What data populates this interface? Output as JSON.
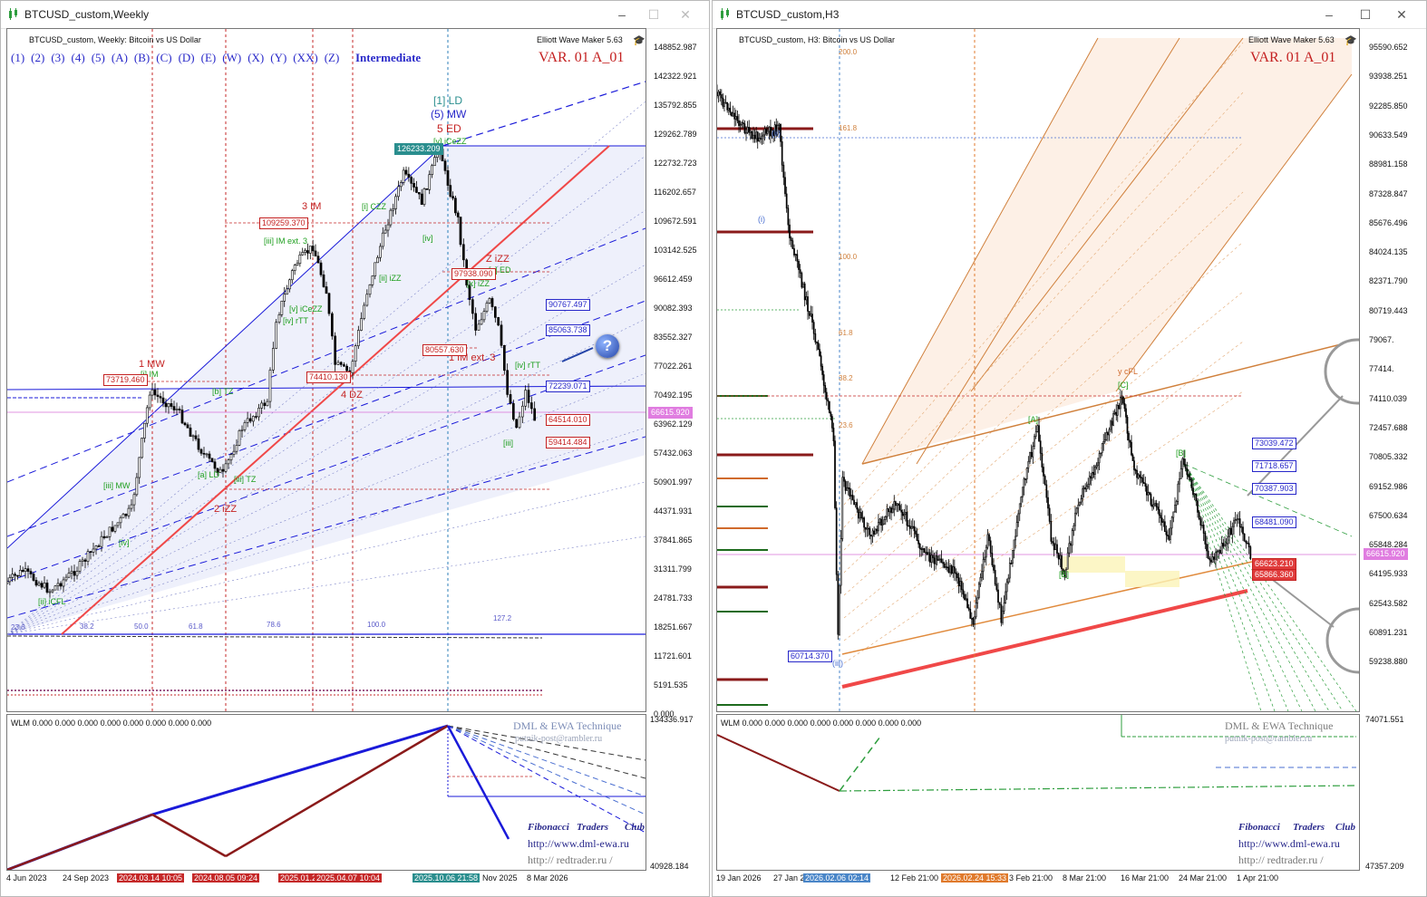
{
  "left": {
    "title": "BTCUSD_custom,Weekly",
    "header": "BTCUSD_custom, Weekly:  Bitcoin vs US Dollar",
    "ewm": "Elliott Wave Maker 5.63",
    "var": "VAR. 01 A_01",
    "waves": [
      "(1)",
      "(2)",
      "(3)",
      "(4)",
      "(5)",
      "(A)",
      "(B)",
      "(C)",
      "(D)",
      "(E)",
      "(W)",
      "(X)",
      "(Y)",
      "(XX)",
      "(Z)"
    ],
    "degree": "Intermediate",
    "price_scale": [
      "148852.987",
      "142322.921",
      "135792.855",
      "129262.789",
      "122732.723",
      "116202.657",
      "109672.591",
      "103142.525",
      "96612.459",
      "90082.393",
      "83552.327",
      "77022.261",
      "70492.195",
      "63962.129",
      "57432.063",
      "50901.997",
      "44371.931",
      "37841.865",
      "31311.799",
      "24781.733",
      "18251.667",
      "11721.601",
      "5191.535",
      "0.000"
    ],
    "current_price": "66615.920",
    "level_tags": [
      "90767.497",
      "85063.738",
      "72239.071",
      "64514.010",
      "59414.484"
    ],
    "price_labels": [
      "126233.209",
      "109259.370",
      "97938.090",
      "80557.630",
      "74410.130",
      "73719.460"
    ],
    "wave_labels": {
      "w1": "[1] LD",
      "w2": "(5) MW",
      "w3": "5 ED",
      "w4": "3 IM",
      "w5": "1 MW",
      "w6": "2 iZZ",
      "w7": "4 DZ",
      "w8": "Z iZZ",
      "w9": "1 IM ext. 3",
      "s1": "[i] IM",
      "s2": "[iii] IM ext. 3",
      "s3": "[i] CZZ",
      "s4": "[iii] MW",
      "s5": "[ii] iCFL",
      "s6": "[a] LD",
      "s7": "[b] TZ",
      "s8": "[iv]",
      "s9": "[iii] TZ",
      "s10": "[ii] iZZ",
      "s11": "[iv] rTT",
      "s12": "[v] iCeZZ",
      "s13": "[iv]",
      "s14": "[c] ED",
      "s15": "[iv] rTT",
      "s16": "[iii]",
      "s17": "[v] iCeZZ",
      "s18": "[x] iZZ"
    },
    "fib_labels": [
      "23.6",
      "38.2",
      "50.0",
      "61.8",
      "78.6",
      "100.0",
      "127.2"
    ],
    "sub_header": "WLM 0.000 0.000 0.000 0.000 0.000 0.000 0.000 0.000",
    "sub_scale": [
      "134336.917",
      "40928.184"
    ],
    "sub_brand": {
      "title": "DML & EWA Technique",
      "email": "putnik-post@rambler.ru",
      "club1": "Fibonacci",
      "club2": "Traders",
      "club3": "Club",
      "url1": "http://www.dml-ewa.ru",
      "url2": "http:// redtrader.ru /"
    },
    "time_axis": [
      "4 Jun 2023",
      "24 Sep 2023",
      "2024.03.14 10:05",
      "2024.08.05 09:24",
      "2025.01.2",
      "2025.04.07 10:04",
      "2025.10.06 21:58",
      "Nov 2025",
      "8 Mar 2026"
    ]
  },
  "right": {
    "title": "BTCUSD_custom,H3",
    "header": "BTCUSD_custom, H3:  Bitcoin vs US Dollar",
    "ewm": "Elliott Wave Maker 5.63",
    "var": "VAR. 01 A_01",
    "price_scale": [
      "95590.652",
      "93938.251",
      "92285.850",
      "90633.549",
      "88981.158",
      "87328.847",
      "85676.496",
      "84024.135",
      "82371.790",
      "80719.443",
      "79067.",
      "77414.",
      "74110.039",
      "72457.688",
      "70805.332",
      "69152.986",
      "67500.634",
      "65848.284",
      "64195.933",
      "62543.582",
      "60891.231",
      "59238.880"
    ],
    "current_price": "66615.920",
    "level_tags": [
      "73039.472",
      "71718.657",
      "70387.903",
      "68481.090",
      "66623.210",
      "65866.360"
    ],
    "low_tag": "60714.370",
    "wave_labels": {
      "yc": "y cFL",
      "c": "[C]",
      "a": "[A]",
      "b": "[B]",
      "b2": "[B]",
      "i": "(i)",
      "ii": "(ii)",
      "iii": "(iii)"
    },
    "fib_labels": [
      "161.8",
      "200.0",
      "100.0",
      "61.8",
      "38.2",
      "23.6"
    ],
    "sub_header": "WLM 0.000 0.000 0.000 0.000 0.000 0.000 0.000 0.000",
    "sub_scale": [
      "74071.551",
      "47357.209"
    ],
    "sub_brand": {
      "title": "DML & EWA Technique",
      "email": "putnik-post@rambler.ru",
      "club1": "Fibonacci",
      "club2": "Traders",
      "club3": "Club",
      "url1": "http://www.dml-ewa.ru",
      "url2": "http:// redtrader.ru /"
    },
    "time_axis": [
      "19 Jan 2026",
      "27 Jan 2",
      "2026.02.06 02:14",
      "12 Feb 21:00",
      "2026.02.24 15:33",
      "3 Feb 21:00",
      "8 Mar 21:00",
      "16 Mar 21:00",
      "24 Mar 21:00",
      "1 Apr 21:00"
    ]
  }
}
